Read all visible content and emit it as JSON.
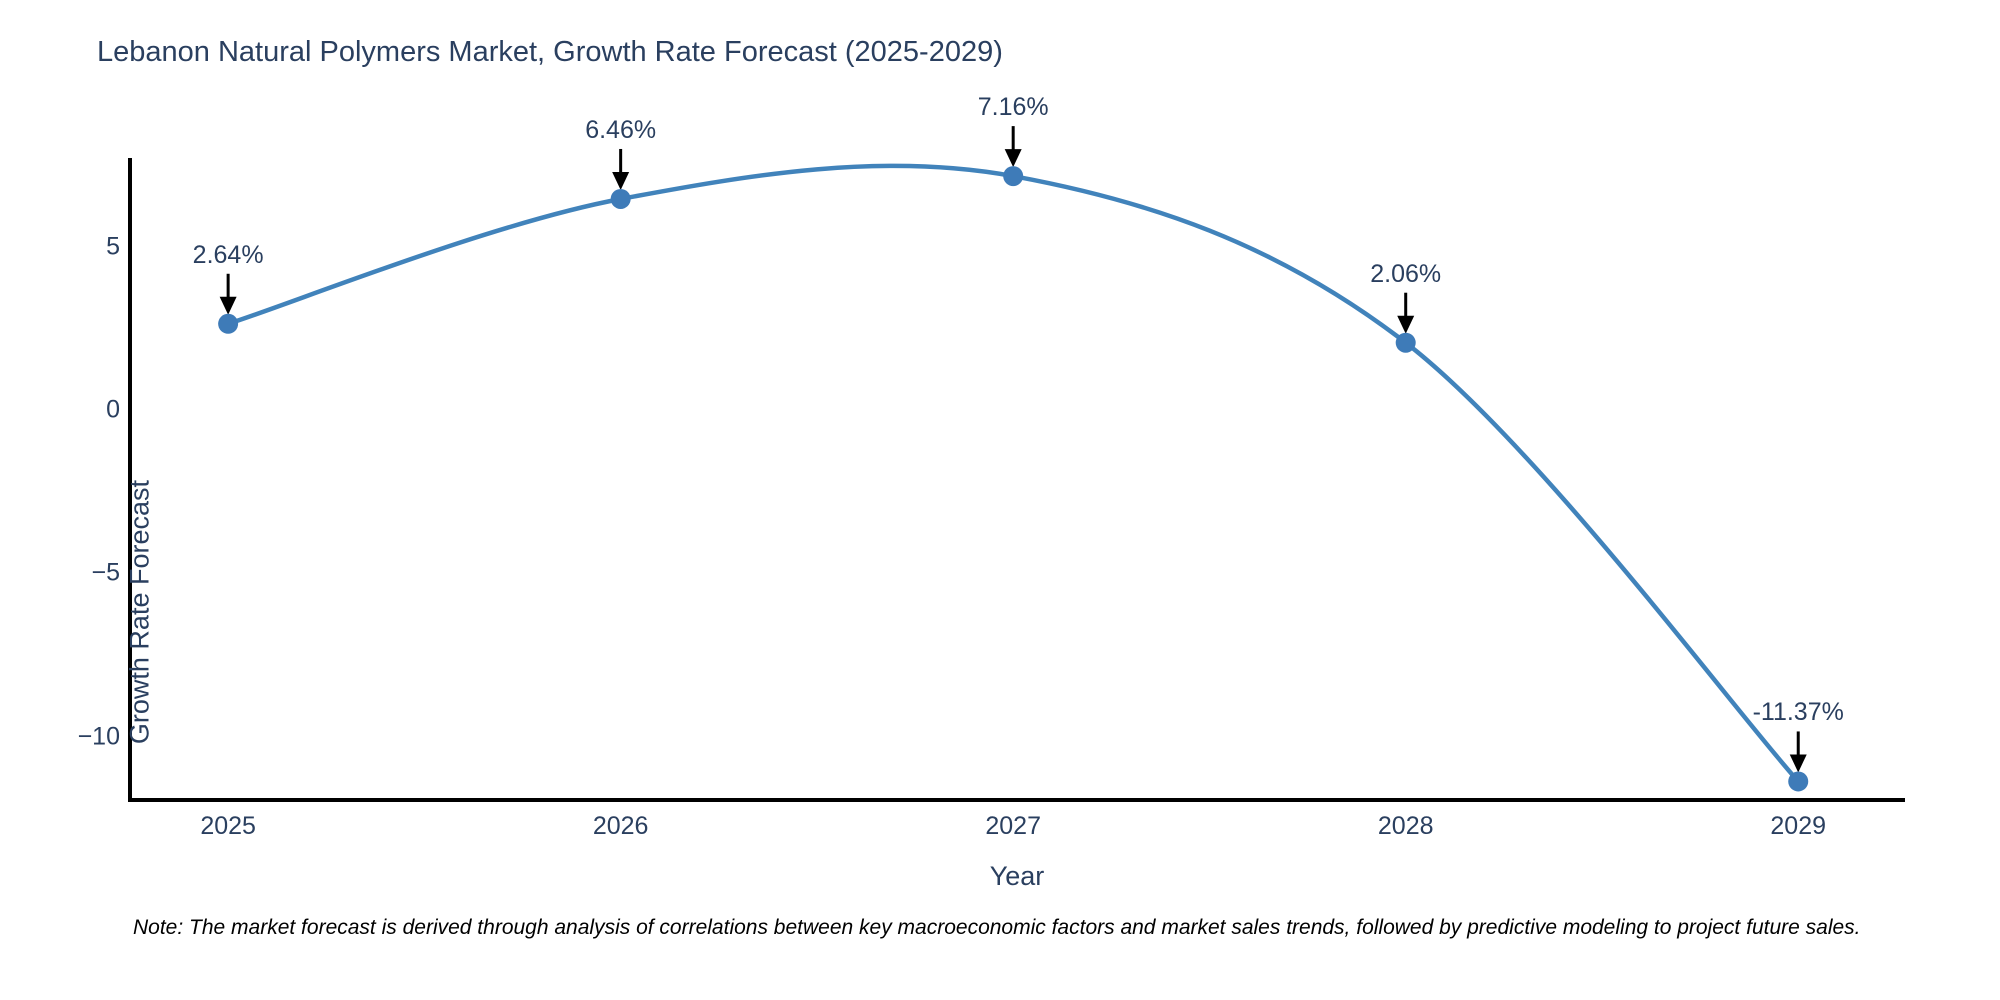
{
  "title": "Lebanon Natural Polymers Market, Growth Rate Forecast (2025-2029)",
  "note": "Note: The market forecast is derived through analysis of correlations between key macroeconomic factors and market sales trends, followed by predictive modeling to project future sales.",
  "chart_data": {
    "type": "line",
    "line_shape": "spline",
    "title": "Lebanon Natural Polymers Market, Growth Rate Forecast (2025-2029)",
    "xlabel": "Year",
    "ylabel": "Growth Rate Forecast",
    "x": [
      2025,
      2026,
      2027,
      2028,
      2029
    ],
    "values": [
      2.64,
      6.46,
      7.16,
      2.06,
      -11.37
    ],
    "point_labels": [
      "2.64%",
      "6.46%",
      "7.16%",
      "2.06%",
      "-11.37%"
    ],
    "x_ticks": [
      {
        "value": 2025,
        "label": "2025"
      },
      {
        "value": 2026,
        "label": "2026"
      },
      {
        "value": 2027,
        "label": "2027"
      },
      {
        "value": 2028,
        "label": "2028"
      },
      {
        "value": 2029,
        "label": "2029"
      }
    ],
    "y_ticks": [
      {
        "value": 5,
        "label": "5"
      },
      {
        "value": 0,
        "label": "0"
      },
      {
        "value": -5,
        "label": "−5"
      },
      {
        "value": -10,
        "label": "−10"
      }
    ],
    "xlim": [
      2024.75,
      2029.272
    ],
    "ylim": [
      -11.938,
      7.653
    ],
    "grid": false,
    "legend": "none",
    "colors": {
      "line": "#4183bb",
      "marker": "#3e7bb8",
      "arrow": "#000000",
      "text": "#2a3f5f",
      "axis": "#000000",
      "background": "#ffffff"
    }
  }
}
